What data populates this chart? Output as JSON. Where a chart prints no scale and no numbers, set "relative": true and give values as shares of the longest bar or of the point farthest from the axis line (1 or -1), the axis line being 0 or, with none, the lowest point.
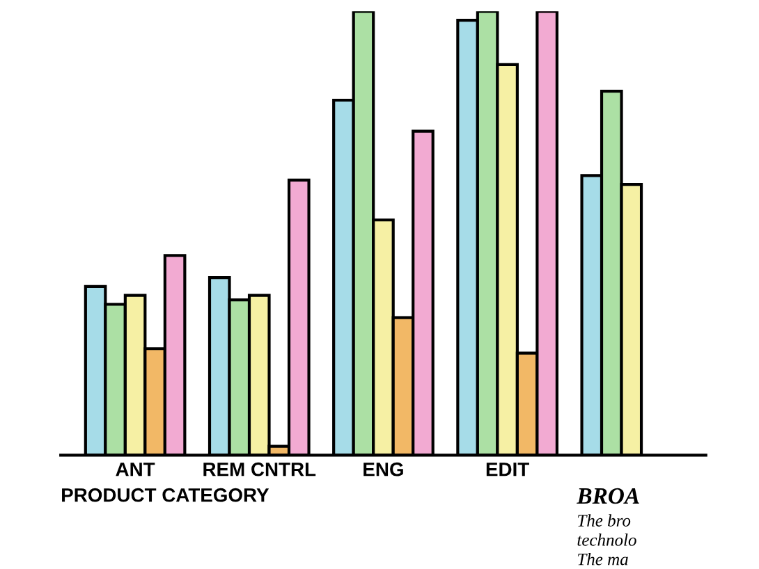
{
  "chart_data": {
    "type": "bar",
    "relative": true,
    "xlabel": "PRODUCT CATEGORY",
    "categories": [
      "ANT",
      "REM CNTRL",
      "ENG",
      "EDIT",
      null
    ],
    "series": [
      {
        "color": "#a6dce8",
        "values": [
          0.38,
          0.4,
          0.8,
          0.98,
          0.63
        ]
      },
      {
        "color": "#ace0a4",
        "values": [
          0.34,
          0.35,
          1.0,
          1.0,
          0.82
        ]
      },
      {
        "color": "#f6f0a4",
        "values": [
          0.36,
          0.36,
          0.53,
          0.88,
          0.61
        ]
      },
      {
        "color": "#f2b866",
        "values": [
          0.24,
          0.02,
          0.31,
          0.23,
          null
        ]
      },
      {
        "color": "#f2aad2",
        "values": [
          0.45,
          0.62,
          0.73,
          1.0,
          null
        ]
      }
    ],
    "annotations": [
      "BROA",
      "The bro",
      "technolo",
      "The ma"
    ],
    "grid": false,
    "legend": false
  }
}
